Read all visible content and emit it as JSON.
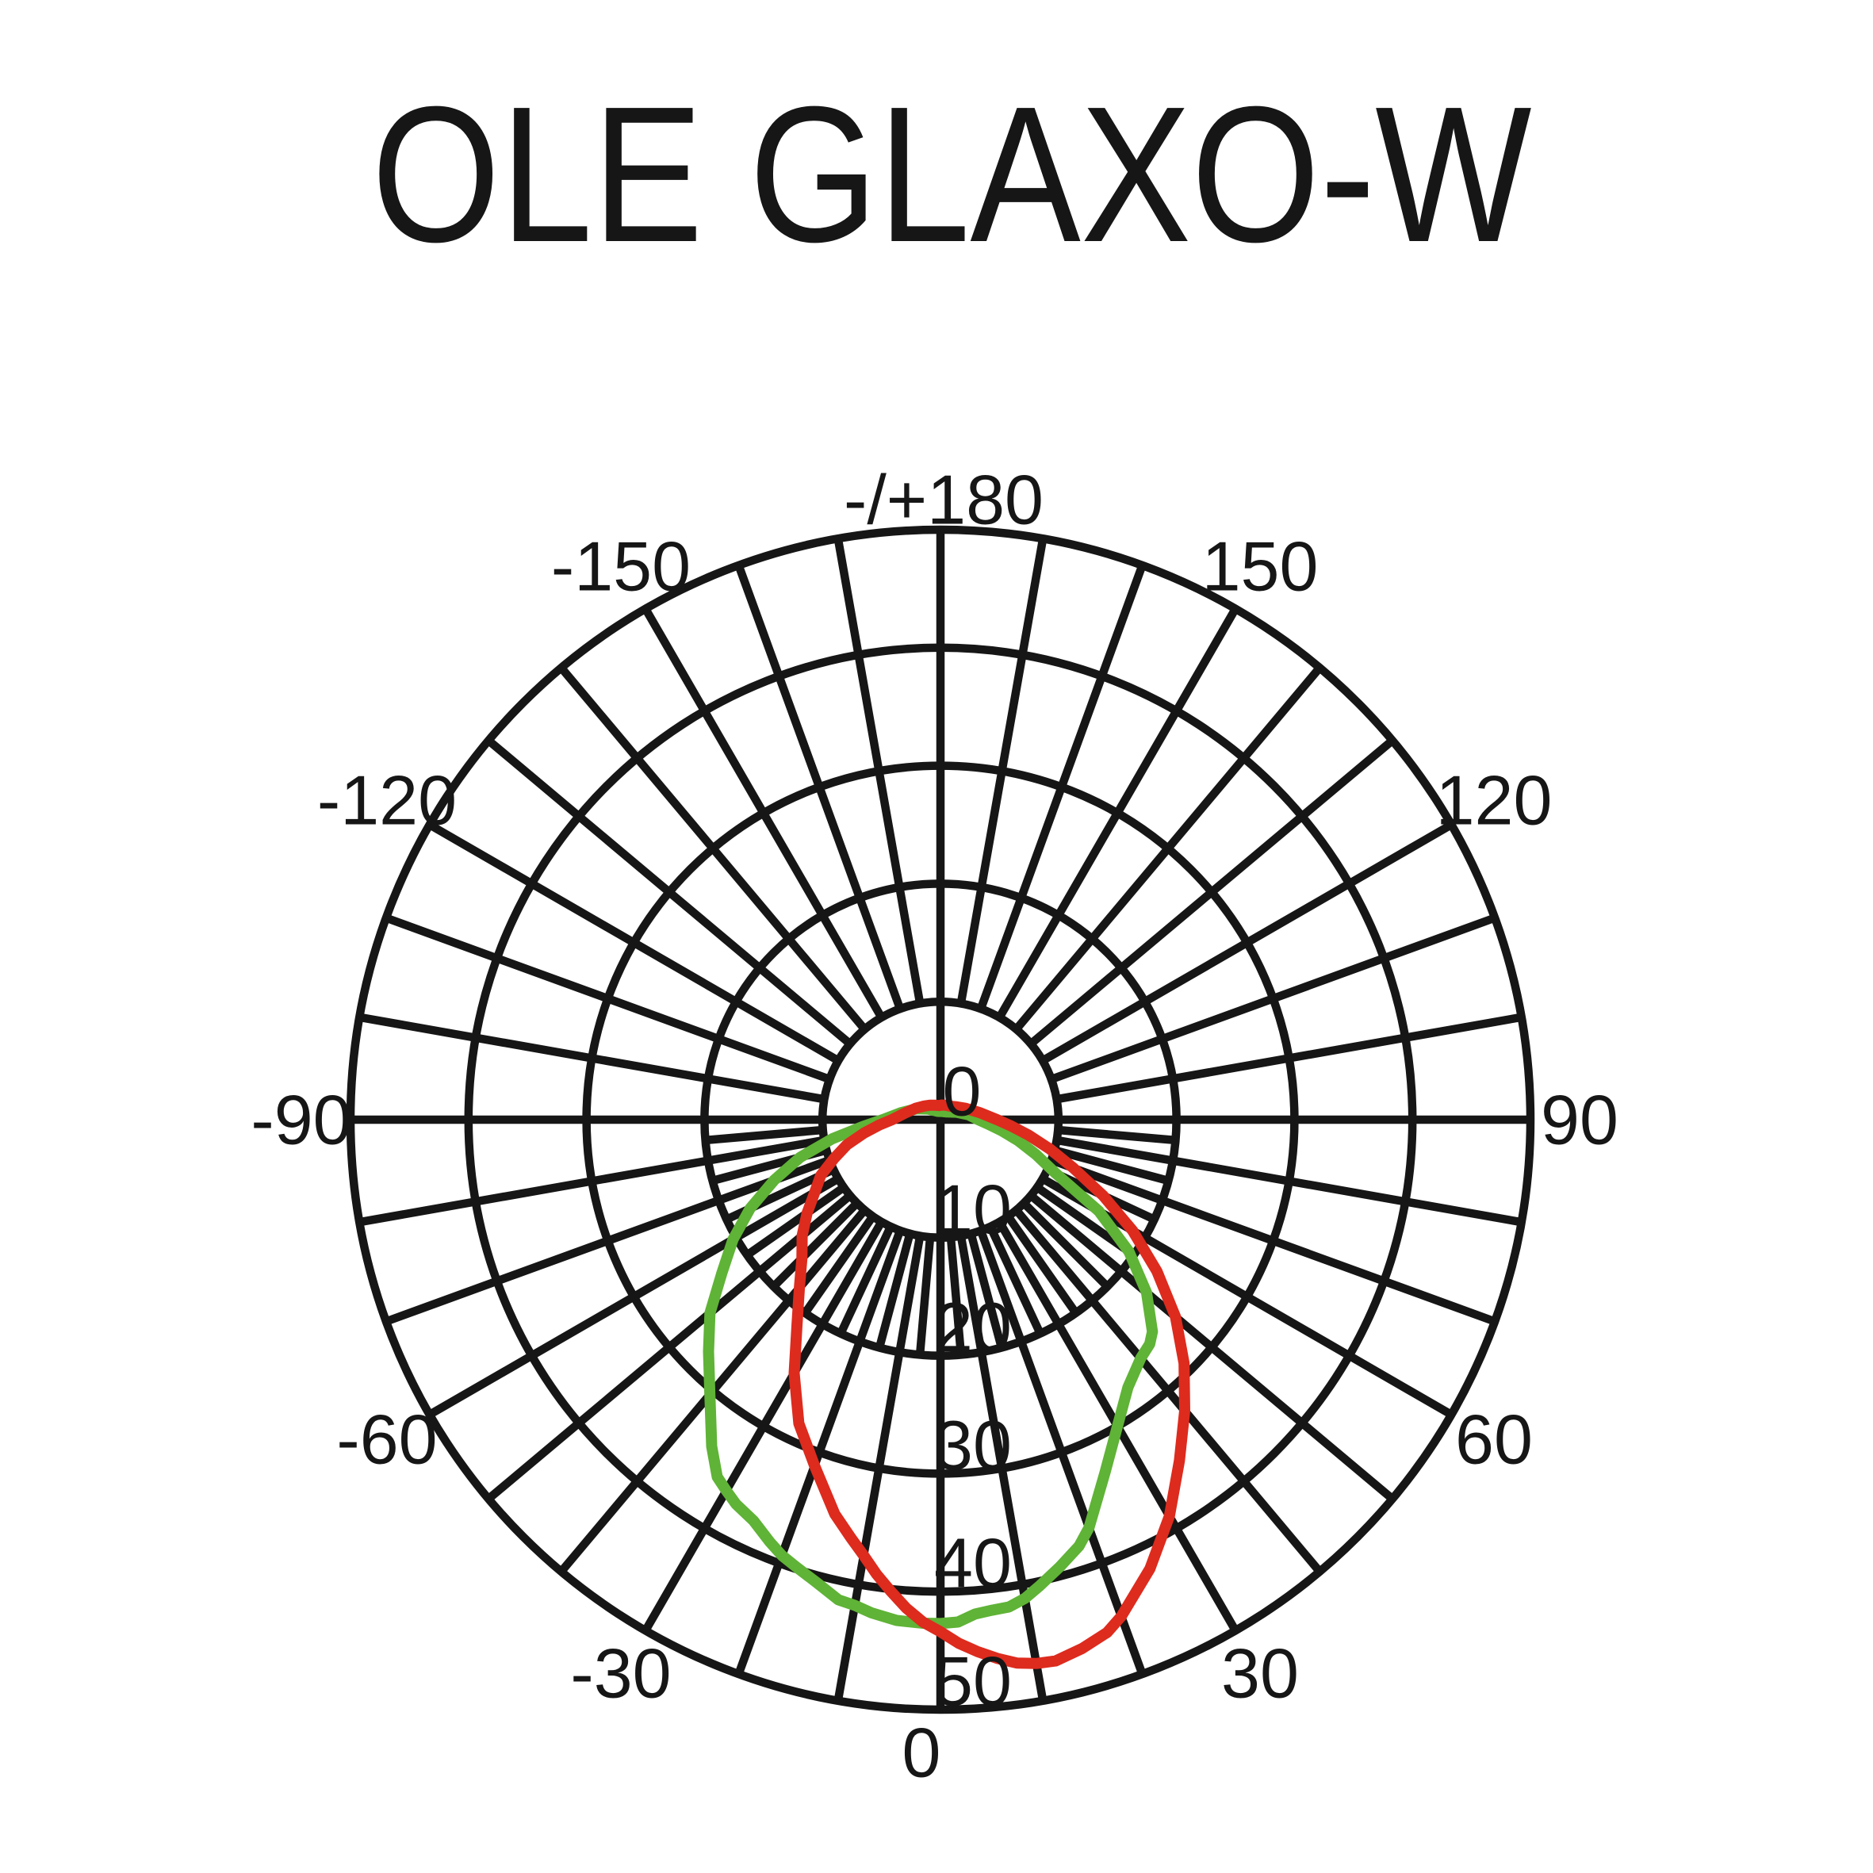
{
  "title": "OLE GLAXO-W",
  "chart_data": {
    "type": "polar",
    "subtype": "photometric-intensity-distribution",
    "title": "OLE GLAXO-W",
    "angle_convention": {
      "zero_position": "bottom",
      "positive_side": "right",
      "unit": "degrees"
    },
    "grid": {
      "circle_step": 10,
      "spoke_step_deg": 10,
      "fine_spoke_step_deg": 5,
      "fine_spoke_region": {
        "angles_deg": [
          -90,
          90
        ],
        "radial_band": [
          10,
          20
        ]
      },
      "grid_color": "#161616",
      "background": "#ffffff"
    },
    "radial_axis": {
      "ticks": [
        0,
        10,
        20,
        30,
        40,
        50
      ],
      "max": 50
    },
    "angle_labels": [
      {
        "deg": 180,
        "label": "-/+180"
      },
      {
        "deg": 150,
        "label": "150"
      },
      {
        "deg": 120,
        "label": "120"
      },
      {
        "deg": 90,
        "label": "90"
      },
      {
        "deg": 60,
        "label": "60"
      },
      {
        "deg": 30,
        "label": "30"
      },
      {
        "deg": 0,
        "label": "0"
      },
      {
        "deg": -30,
        "label": "-30"
      },
      {
        "deg": -60,
        "label": "-60"
      },
      {
        "deg": -90,
        "label": "-90"
      },
      {
        "deg": -120,
        "label": "-120"
      },
      {
        "deg": -150,
        "label": "-150"
      }
    ],
    "series": [
      {
        "name": "green-plane-curve",
        "color": "#5fb336",
        "points": [
          [
            -90,
            4.9
          ],
          [
            -85,
            6.6
          ],
          [
            -80,
            9.3
          ],
          [
            -75,
            12.3
          ],
          [
            -70,
            15.0
          ],
          [
            -65,
            17.8
          ],
          [
            -60,
            20.3
          ],
          [
            -55,
            22.6
          ],
          [
            -50,
            25.5
          ],
          [
            -45,
            27.8
          ],
          [
            -40,
            30.4
          ],
          [
            -35,
            33.8
          ],
          [
            -32,
            35.7
          ],
          [
            -30,
            36.3
          ],
          [
            -28,
            36.9
          ],
          [
            -25,
            37.5
          ],
          [
            -22,
            38.6
          ],
          [
            -20,
            39.3
          ],
          [
            -18,
            39.8
          ],
          [
            -15,
            40.6
          ],
          [
            -12,
            41.6
          ],
          [
            -10,
            41.8
          ],
          [
            -8,
            42.2
          ],
          [
            -5,
            42.6
          ],
          [
            -2,
            42.7
          ],
          [
            0,
            42.7
          ],
          [
            2,
            42.6
          ],
          [
            4,
            42.0
          ],
          [
            6,
            41.8
          ],
          [
            8,
            41.7
          ],
          [
            10,
            41.2
          ],
          [
            12,
            40.4
          ],
          [
            15,
            39.2
          ],
          [
            18,
            38.0
          ],
          [
            20,
            36.8
          ],
          [
            25,
            33.0
          ],
          [
            30,
            30.0
          ],
          [
            35,
            27.7
          ],
          [
            40,
            26.4
          ],
          [
            43,
            26.0
          ],
          [
            45,
            25.4
          ],
          [
            50,
            22.8
          ],
          [
            55,
            19.5
          ],
          [
            60,
            15.5
          ],
          [
            65,
            10.8
          ],
          [
            70,
            8.6
          ],
          [
            75,
            6.8
          ],
          [
            80,
            5.2
          ],
          [
            85,
            4.0
          ],
          [
            90,
            3.2
          ],
          [
            100,
            2.4
          ],
          [
            115,
            1.5
          ],
          [
            130,
            1.0
          ],
          [
            145,
            0.8
          ],
          [
            160,
            0.72
          ],
          [
            175,
            0.7
          ],
          [
            -175,
            0.7
          ],
          [
            -160,
            0.75
          ],
          [
            -145,
            0.95
          ],
          [
            -130,
            1.4
          ],
          [
            -115,
            2.2
          ],
          [
            -100,
            3.4
          ]
        ]
      },
      {
        "name": "red-plane-curve",
        "color": "#dd2b1e",
        "points": [
          [
            -90,
            4.1
          ],
          [
            -85,
            5.2
          ],
          [
            -80,
            6.6
          ],
          [
            -75,
            8.2
          ],
          [
            -70,
            9.6
          ],
          [
            -65,
            11.2
          ],
          [
            -60,
            12.3
          ],
          [
            -55,
            13.8
          ],
          [
            -50,
            15.3
          ],
          [
            -45,
            16.6
          ],
          [
            -40,
            18.6
          ],
          [
            -35,
            21.2
          ],
          [
            -30,
            24.8
          ],
          [
            -25,
            28.4
          ],
          [
            -20,
            31.2
          ],
          [
            -15,
            34.6
          ],
          [
            -12,
            36.3
          ],
          [
            -10,
            37.5
          ],
          [
            -8,
            38.9
          ],
          [
            -6,
            40.2
          ],
          [
            -4,
            41.5
          ],
          [
            -2,
            42.6
          ],
          [
            0,
            43.4
          ],
          [
            2,
            44.4
          ],
          [
            4,
            45.2
          ],
          [
            6,
            45.9
          ],
          [
            8,
            46.5
          ],
          [
            10,
            46.8
          ],
          [
            12,
            46.9
          ],
          [
            15,
            46.4
          ],
          [
            18,
            45.7
          ],
          [
            20,
            44.8
          ],
          [
            25,
            42.0
          ],
          [
            30,
            38.8
          ],
          [
            35,
            35.3
          ],
          [
            40,
            32.2
          ],
          [
            45,
            29.2
          ],
          [
            50,
            26.0
          ],
          [
            55,
            22.4
          ],
          [
            60,
            18.8
          ],
          [
            65,
            15.2
          ],
          [
            70,
            12.0
          ],
          [
            75,
            9.6
          ],
          [
            80,
            7.6
          ],
          [
            85,
            6.0
          ],
          [
            90,
            4.8
          ],
          [
            100,
            3.4
          ],
          [
            115,
            2.3
          ],
          [
            130,
            1.7
          ],
          [
            145,
            1.4
          ],
          [
            160,
            1.3
          ],
          [
            175,
            1.25
          ],
          [
            -175,
            1.2
          ],
          [
            -160,
            1.3
          ],
          [
            -145,
            1.5
          ],
          [
            -130,
            1.8
          ],
          [
            -115,
            2.3
          ],
          [
            -100,
            3.1
          ]
        ]
      }
    ]
  }
}
